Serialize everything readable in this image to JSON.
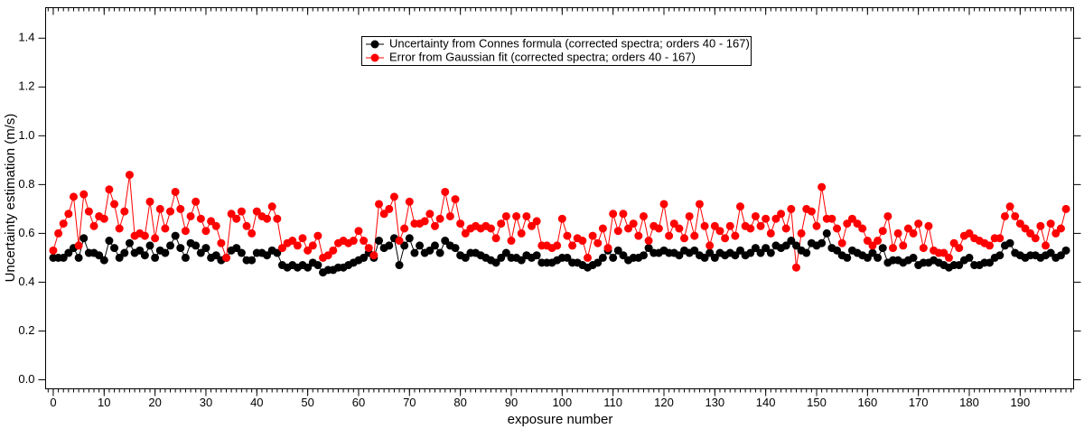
{
  "chart_data": {
    "type": "line",
    "xlabel": "exposure number",
    "ylabel": "Uncertainty estimation (m/s)",
    "xlim": [
      -1.5,
      200.5
    ],
    "ylim": [
      -0.037,
      1.525
    ],
    "xticks": [
      0,
      10,
      20,
      30,
      40,
      50,
      60,
      70,
      80,
      90,
      100,
      110,
      120,
      130,
      140,
      150,
      160,
      170,
      180,
      190
    ],
    "yticks": [
      {
        "value": 0,
        "label": "0.0"
      },
      {
        "value": 0.2,
        "label": "0.2"
      },
      {
        "value": 0.4,
        "label": "0.4"
      },
      {
        "value": 0.6,
        "label": "0.6"
      },
      {
        "value": 0.8,
        "label": "0.8"
      },
      {
        "value": 1.0,
        "label": "1.0"
      },
      {
        "value": 1.2,
        "label": "1.2"
      },
      {
        "value": 1.4,
        "label": "1.4"
      }
    ],
    "x": [
      0,
      1,
      2,
      3,
      4,
      5,
      6,
      7,
      8,
      9,
      10,
      11,
      12,
      13,
      14,
      15,
      16,
      17,
      18,
      19,
      20,
      21,
      22,
      23,
      24,
      25,
      26,
      27,
      28,
      29,
      30,
      31,
      32,
      33,
      34,
      35,
      36,
      37,
      38,
      39,
      40,
      41,
      42,
      43,
      44,
      45,
      46,
      47,
      48,
      49,
      50,
      51,
      52,
      53,
      54,
      55,
      56,
      57,
      58,
      59,
      60,
      61,
      62,
      63,
      64,
      65,
      66,
      67,
      68,
      69,
      70,
      71,
      72,
      73,
      74,
      75,
      76,
      77,
      78,
      79,
      80,
      81,
      82,
      83,
      84,
      85,
      86,
      87,
      88,
      89,
      90,
      91,
      92,
      93,
      94,
      95,
      96,
      97,
      98,
      99,
      100,
      101,
      102,
      103,
      104,
      105,
      106,
      107,
      108,
      109,
      110,
      111,
      112,
      113,
      114,
      115,
      116,
      117,
      118,
      119,
      120,
      121,
      122,
      123,
      124,
      125,
      126,
      127,
      128,
      129,
      130,
      131,
      132,
      133,
      134,
      135,
      136,
      137,
      138,
      139,
      140,
      141,
      142,
      143,
      144,
      145,
      146,
      147,
      148,
      149,
      150,
      151,
      152,
      153,
      154,
      155,
      156,
      157,
      158,
      159,
      160,
      161,
      162,
      163,
      164,
      165,
      166,
      167,
      168,
      169,
      170,
      171,
      172,
      173,
      174,
      175,
      176,
      177,
      178,
      179,
      180,
      181,
      182,
      183,
      184,
      185,
      186,
      187,
      188,
      189,
      190,
      191,
      192,
      193,
      194,
      195,
      196,
      197,
      198,
      199
    ],
    "series": [
      {
        "name": "Uncertainty from Connes formula (corrected spectra; orders 40 - 167)",
        "color": "#000000",
        "values": [
          0.5,
          0.5,
          0.5,
          0.52,
          0.54,
          0.5,
          0.58,
          0.52,
          0.52,
          0.51,
          0.49,
          0.57,
          0.54,
          0.5,
          0.52,
          0.56,
          0.52,
          0.53,
          0.51,
          0.55,
          0.5,
          0.53,
          0.52,
          0.55,
          0.59,
          0.54,
          0.5,
          0.56,
          0.55,
          0.52,
          0.54,
          0.5,
          0.51,
          0.49,
          0.5,
          0.53,
          0.54,
          0.52,
          0.49,
          0.49,
          0.52,
          0.52,
          0.51,
          0.53,
          0.52,
          0.47,
          0.46,
          0.47,
          0.46,
          0.47,
          0.46,
          0.48,
          0.47,
          0.44,
          0.45,
          0.45,
          0.46,
          0.46,
          0.47,
          0.48,
          0.49,
          0.5,
          0.52,
          0.5,
          0.57,
          0.54,
          0.55,
          0.58,
          0.47,
          0.55,
          0.58,
          0.52,
          0.55,
          0.52,
          0.53,
          0.55,
          0.52,
          0.57,
          0.55,
          0.54,
          0.51,
          0.5,
          0.52,
          0.52,
          0.51,
          0.5,
          0.49,
          0.48,
          0.5,
          0.52,
          0.5,
          0.5,
          0.49,
          0.51,
          0.5,
          0.51,
          0.48,
          0.48,
          0.48,
          0.49,
          0.5,
          0.5,
          0.48,
          0.48,
          0.47,
          0.46,
          0.47,
          0.48,
          0.5,
          0.53,
          0.5,
          0.53,
          0.51,
          0.49,
          0.5,
          0.5,
          0.51,
          0.54,
          0.52,
          0.52,
          0.53,
          0.52,
          0.52,
          0.51,
          0.53,
          0.52,
          0.53,
          0.51,
          0.5,
          0.52,
          0.5,
          0.52,
          0.51,
          0.52,
          0.51,
          0.53,
          0.51,
          0.52,
          0.54,
          0.52,
          0.54,
          0.52,
          0.55,
          0.54,
          0.55,
          0.57,
          0.55,
          0.53,
          0.52,
          0.56,
          0.55,
          0.56,
          0.6,
          0.54,
          0.53,
          0.51,
          0.5,
          0.53,
          0.52,
          0.51,
          0.5,
          0.52,
          0.5,
          0.54,
          0.48,
          0.49,
          0.49,
          0.48,
          0.49,
          0.5,
          0.47,
          0.48,
          0.48,
          0.49,
          0.48,
          0.47,
          0.46,
          0.47,
          0.47,
          0.49,
          0.5,
          0.47,
          0.47,
          0.48,
          0.48,
          0.5,
          0.51,
          0.55,
          0.56,
          0.52,
          0.51,
          0.5,
          0.51,
          0.51,
          0.5,
          0.51,
          0.52,
          0.5,
          0.51,
          0.53
        ]
      },
      {
        "name": "Error from Gaussian fit (corrected spectra; orders 40 - 167)",
        "color": "#ff0000",
        "values": [
          0.53,
          0.6,
          0.64,
          0.68,
          0.75,
          0.55,
          0.76,
          0.69,
          0.63,
          0.67,
          0.66,
          0.78,
          0.72,
          0.62,
          0.69,
          0.84,
          0.59,
          0.6,
          0.59,
          0.73,
          0.58,
          0.7,
          0.62,
          0.69,
          0.77,
          0.7,
          0.61,
          0.67,
          0.73,
          0.66,
          0.61,
          0.65,
          0.63,
          0.56,
          0.5,
          0.68,
          0.66,
          0.69,
          0.63,
          0.6,
          0.69,
          0.67,
          0.66,
          0.71,
          0.66,
          0.54,
          0.56,
          0.57,
          0.55,
          0.58,
          0.53,
          0.55,
          0.59,
          0.5,
          0.51,
          0.53,
          0.56,
          0.57,
          0.56,
          0.57,
          0.61,
          0.57,
          0.54,
          0.51,
          0.72,
          0.68,
          0.7,
          0.75,
          0.57,
          0.62,
          0.73,
          0.64,
          0.64,
          0.65,
          0.68,
          0.63,
          0.66,
          0.77,
          0.67,
          0.74,
          0.64,
          0.6,
          0.62,
          0.63,
          0.62,
          0.63,
          0.62,
          0.58,
          0.64,
          0.67,
          0.57,
          0.67,
          0.6,
          0.67,
          0.63,
          0.65,
          0.55,
          0.55,
          0.54,
          0.55,
          0.66,
          0.59,
          0.55,
          0.58,
          0.57,
          0.5,
          0.59,
          0.56,
          0.62,
          0.54,
          0.68,
          0.61,
          0.68,
          0.62,
          0.64,
          0.59,
          0.67,
          0.57,
          0.63,
          0.62,
          0.72,
          0.59,
          0.64,
          0.62,
          0.58,
          0.67,
          0.59,
          0.72,
          0.63,
          0.55,
          0.63,
          0.61,
          0.58,
          0.63,
          0.59,
          0.71,
          0.63,
          0.62,
          0.67,
          0.63,
          0.66,
          0.6,
          0.66,
          0.68,
          0.62,
          0.7,
          0.46,
          0.6,
          0.7,
          0.69,
          0.63,
          0.79,
          0.66,
          0.66,
          0.62,
          0.56,
          0.64,
          0.66,
          0.64,
          0.62,
          0.57,
          0.55,
          0.57,
          0.61,
          0.67,
          0.54,
          0.6,
          0.55,
          0.62,
          0.6,
          0.64,
          0.54,
          0.63,
          0.53,
          0.52,
          0.52,
          0.5,
          0.56,
          0.54,
          0.59,
          0.6,
          0.58,
          0.57,
          0.56,
          0.55,
          0.58,
          0.58,
          0.67,
          0.71,
          0.67,
          0.64,
          0.62,
          0.6,
          0.58,
          0.63,
          0.55,
          0.64,
          0.6,
          0.62,
          0.7
        ]
      }
    ]
  }
}
